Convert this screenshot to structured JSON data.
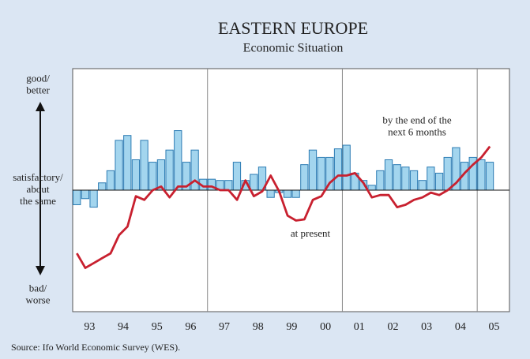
{
  "chart_data": {
    "type": "bar_line",
    "title": "EASTERN EUROPE",
    "subtitle": "Economic Situation",
    "source": "Source: Ifo World Economic Survey (WES).",
    "categories": [
      null,
      "93",
      null,
      null,
      null,
      "94",
      null,
      null,
      null,
      "95",
      null,
      null,
      null,
      "96",
      null,
      null,
      null,
      "97",
      null,
      null,
      null,
      "98",
      null,
      null,
      null,
      "99",
      null,
      null,
      null,
      "00",
      null,
      null,
      null,
      "01",
      null,
      null,
      null,
      "02",
      null,
      null,
      null,
      "03",
      null,
      null,
      null,
      "04",
      null,
      null,
      null,
      "05"
    ],
    "series": [
      {
        "name": "by the end of the\nnext 6 months",
        "kind": "bar",
        "color": "#a3d5ee",
        "edge": "#2b7bb3",
        "values": [
          -12,
          -7,
          -14,
          6,
          16,
          41,
          45,
          25,
          41,
          23,
          25,
          33,
          49,
          23,
          33,
          9,
          9,
          8,
          8,
          23,
          8,
          13,
          19,
          -6,
          -2,
          -6,
          -6,
          21,
          33,
          27,
          27,
          34,
          37,
          14,
          8,
          4,
          16,
          25,
          21,
          19,
          16,
          8,
          19,
          14,
          27,
          35,
          23,
          27,
          25,
          23
        ]
      },
      {
        "name": "at present",
        "kind": "line",
        "color": "#c8202f",
        "values": [
          -52,
          -64,
          -60,
          -56,
          -52,
          -37,
          -30,
          -5,
          -8,
          0,
          3,
          -6,
          3,
          3,
          8,
          3,
          3,
          0,
          0,
          -8,
          8,
          -5,
          -1,
          12,
          -1,
          -21,
          -25,
          -24,
          -8,
          -5,
          6,
          12,
          12,
          14,
          6,
          -6,
          -4,
          -4,
          -14,
          -12,
          -8,
          -6,
          -2,
          -4,
          0,
          6,
          14,
          21,
          27,
          36
        ]
      }
    ],
    "ylim": [
      -100,
      100
    ],
    "yticks": [
      {
        "value": 100,
        "label": "good/\nbetter"
      },
      {
        "value": 0,
        "label": "satisfactory/\nabout\nthe same"
      },
      {
        "value": -100,
        "label": "bad/\nworse"
      }
    ]
  }
}
